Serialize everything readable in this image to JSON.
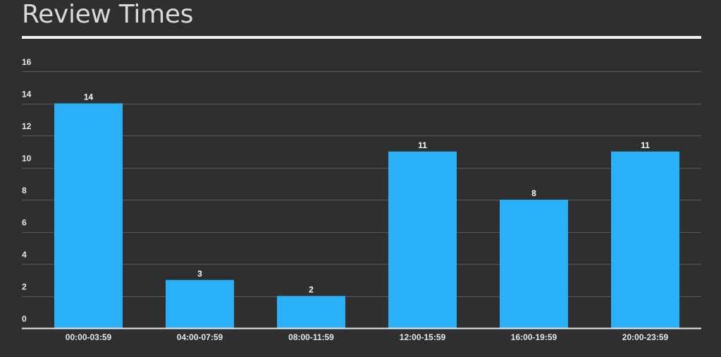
{
  "chart_data": {
    "type": "bar",
    "title": "Review Times",
    "categories": [
      "00:00-03:59",
      "04:00-07:59",
      "08:00-11:59",
      "12:00-15:59",
      "16:00-19:59",
      "20:00-23:59"
    ],
    "values": [
      14,
      3,
      2,
      11,
      8,
      11
    ],
    "ylim": [
      0,
      16
    ],
    "yticks": [
      0,
      2,
      4,
      6,
      8,
      10,
      12,
      14,
      16
    ],
    "xlabel": "",
    "ylabel": "",
    "grid": true,
    "data_labels": true,
    "legend": "none"
  },
  "colors": {
    "background": "#2f2f2f",
    "bar": "#29b0f6",
    "grid": "#5a5a5a",
    "axis": "#e8e8e8",
    "text": "#e8e8e8"
  }
}
